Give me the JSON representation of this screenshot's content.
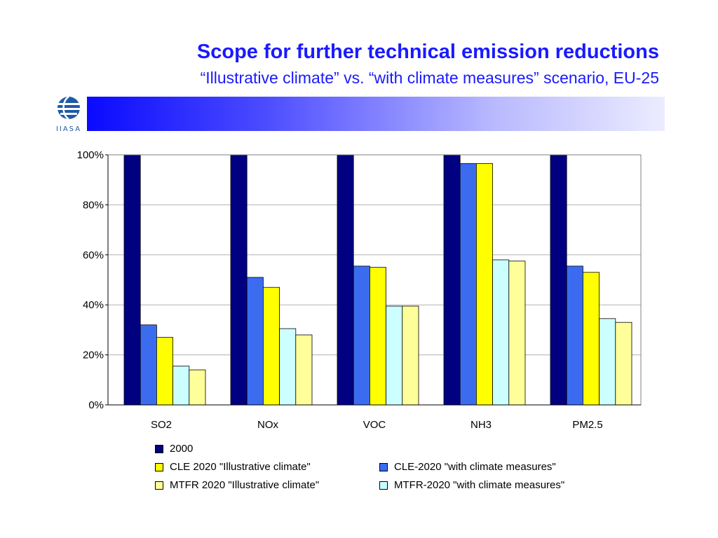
{
  "slide": {
    "title": "Scope for further technical emission reductions",
    "subtitle": "“Illustrative climate” vs. “with climate measures” scenario, EU-25",
    "logo_text": "IIASA"
  },
  "colors": {
    "title": "#1a1aff",
    "series": [
      "#000080",
      "#3b6cf0",
      "#ffff00",
      "#ccffff",
      "#ffff99"
    ]
  },
  "chart_data": {
    "type": "bar",
    "categories": [
      "SO2",
      "NOx",
      "VOC",
      "NH3",
      "PM2.5"
    ],
    "y_ticks": [
      "0%",
      "20%",
      "40%",
      "60%",
      "80%",
      "100%"
    ],
    "ylim": [
      0,
      100
    ],
    "grid": true,
    "legend_position": "bottom",
    "series": [
      {
        "name": "2000",
        "values": [
          100,
          100,
          100,
          100,
          100
        ]
      },
      {
        "name": "CLE-2020 \"with climate measures\"",
        "values": [
          32,
          51,
          55.5,
          96.5,
          55.5
        ]
      },
      {
        "name": "CLE 2020 \"Illustrative climate\"",
        "values": [
          27,
          47,
          55,
          96.5,
          53
        ]
      },
      {
        "name": "MTFR-2020 \"with climate measures\"",
        "values": [
          15.5,
          30.5,
          39.5,
          58,
          34.5
        ]
      },
      {
        "name": "MTFR 2020 \"Illustrative climate\"",
        "values": [
          14,
          28,
          39.5,
          57.5,
          33
        ]
      }
    ]
  },
  "legend": {
    "item_2000": "2000",
    "item_cle_illustrative": "CLE 2020 \"Illustrative climate\"",
    "item_cle_measures": "CLE-2020 \"with climate measures\"",
    "item_mtfr_illustrative": "MTFR 2020 \"Illustrative climate\"",
    "item_mtfr_measures": "MTFR-2020 \"with climate measures\""
  }
}
